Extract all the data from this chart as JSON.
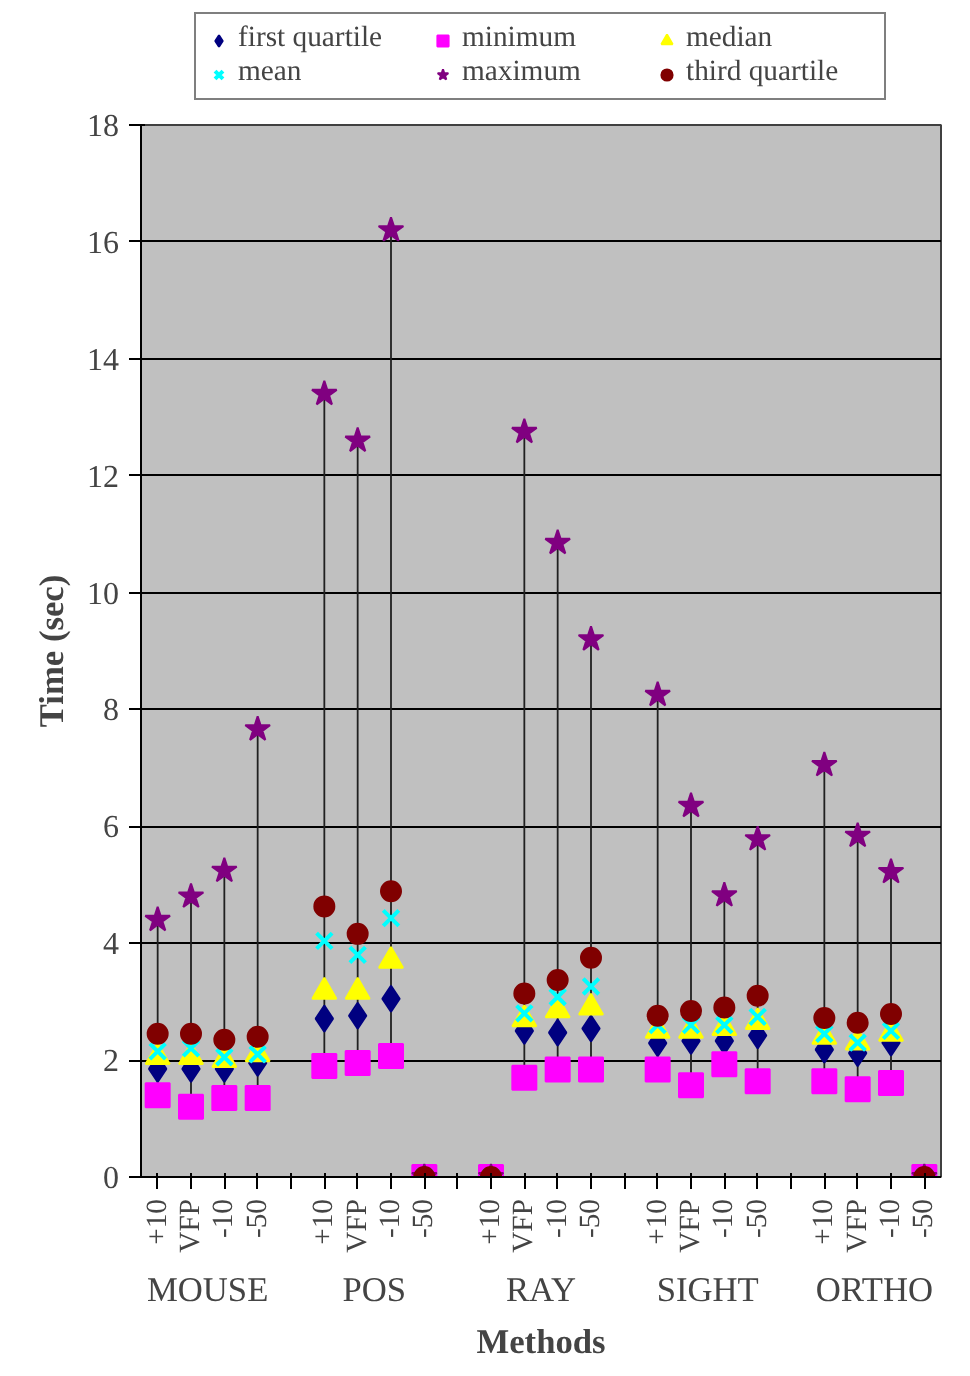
{
  "chart_data": {
    "type": "scatter",
    "xlabel": "Methods",
    "ylabel": "Time (sec)",
    "categories": [
      "+10",
      "VFP",
      "-10",
      "-50",
      null,
      "+10",
      "VFP",
      "-10",
      "-50",
      null,
      "+10",
      "VFP",
      "-10",
      "-50",
      null,
      "+10",
      "VFP",
      "-10",
      "-50",
      null,
      "+10",
      "VFP",
      "-10",
      "-50"
    ],
    "annotations": [
      "MOUSE",
      "POS",
      "RAY",
      "SIGHT",
      "ORTHO"
    ],
    "ylim": [
      0,
      18
    ],
    "yticks": [
      0,
      2,
      4,
      6,
      8,
      10,
      12,
      14,
      16,
      18
    ],
    "grid": "y",
    "legend": "top",
    "series": [
      {
        "name": "first quartile",
        "color": "#000080",
        "marker": "diamond",
        "values": [
          1.85,
          1.85,
          1.85,
          1.95,
          null,
          2.71,
          2.76,
          3.05,
          null,
          null,
          null,
          2.5,
          2.47,
          2.54,
          null,
          2.29,
          2.33,
          2.33,
          2.42,
          null,
          2.18,
          2.12,
          2.3,
          null
        ]
      },
      {
        "name": "minimum",
        "color": "#ff00ff",
        "marker": "square",
        "values": [
          1.4,
          1.2,
          1.35,
          1.35,
          null,
          1.9,
          1.95,
          2.07,
          0,
          null,
          0,
          1.7,
          1.84,
          1.84,
          null,
          1.84,
          1.57,
          1.93,
          1.64,
          null,
          1.64,
          1.5,
          1.61,
          0
        ]
      },
      {
        "name": "median",
        "color": "#ffff00",
        "marker": "triangle",
        "values": [
          2.05,
          2.05,
          2.0,
          2.1,
          null,
          3.17,
          3.17,
          3.7,
          null,
          null,
          null,
          2.7,
          2.85,
          2.9,
          null,
          2.5,
          2.5,
          2.55,
          2.65,
          null,
          2.4,
          2.3,
          2.45,
          null
        ]
      },
      {
        "name": "mean",
        "color": "#00ffff",
        "marker": "cross",
        "values": [
          2.15,
          2.2,
          2.05,
          2.1,
          null,
          4.04,
          3.8,
          4.43,
          0,
          null,
          0,
          2.8,
          3.08,
          3.26,
          null,
          2.6,
          2.6,
          2.6,
          2.74,
          null,
          2.45,
          2.3,
          2.5,
          0
        ]
      },
      {
        "name": "maximum",
        "color": "#800080",
        "marker": "star",
        "values": [
          4.4,
          4.8,
          5.24,
          7.66,
          null,
          13.4,
          12.6,
          16.2,
          0,
          null,
          0,
          12.75,
          10.85,
          9.2,
          null,
          8.25,
          6.35,
          4.82,
          5.78,
          null,
          7.05,
          5.84,
          5.22,
          0
        ]
      },
      {
        "name": "third quartile",
        "color": "#800000",
        "marker": "circle",
        "values": [
          2.45,
          2.45,
          2.35,
          2.4,
          null,
          4.63,
          4.16,
          4.89,
          0,
          null,
          0,
          3.14,
          3.37,
          3.75,
          null,
          2.76,
          2.84,
          2.9,
          3.1,
          null,
          2.72,
          2.64,
          2.79,
          0
        ]
      }
    ]
  }
}
